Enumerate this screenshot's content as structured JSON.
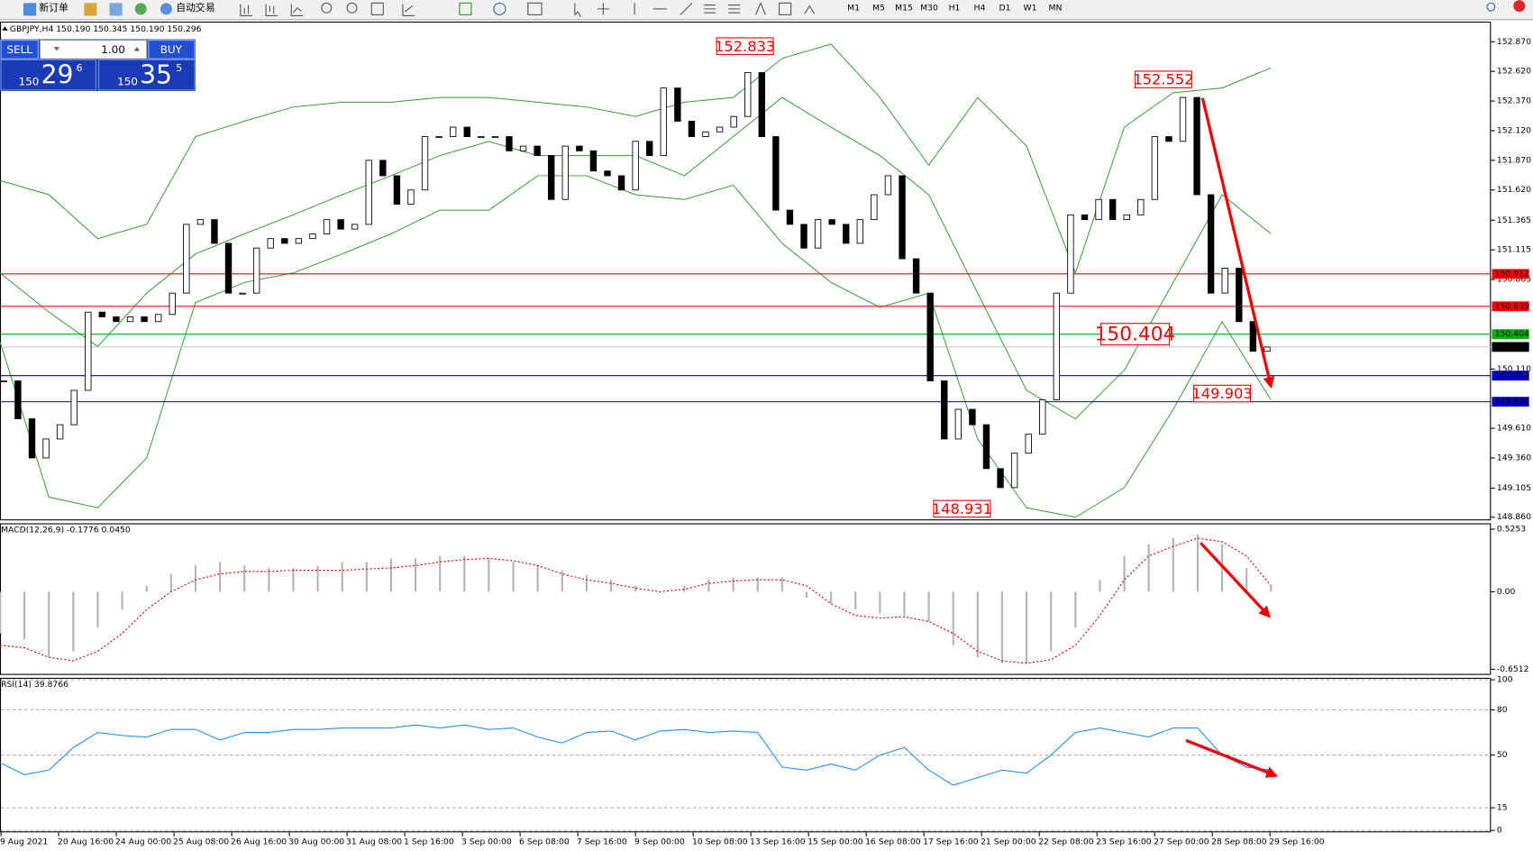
{
  "toolbar": {
    "new_order": "新订单",
    "auto_trading": "自动交易",
    "timeframes": [
      "M1",
      "M5",
      "M15",
      "M30",
      "H1",
      "H4",
      "D1",
      "W1",
      "MN"
    ]
  },
  "trade_panel": {
    "sell": "SELL",
    "lot": "1.00",
    "buy": "BUY",
    "bid": {
      "big": "150",
      "mid": "29",
      "small": "6"
    },
    "ask": {
      "big": "150",
      "mid": "35",
      "small": "5"
    }
  },
  "chart_data": [
    {
      "type": "candlestick",
      "title": "GBPJPY,H4 150.190 150.345 150.190 150.296",
      "closes": [
        150.01,
        149.69,
        149.36,
        149.52,
        149.64,
        149.93,
        150.59,
        150.55,
        150.51,
        150.55,
        150.51,
        150.57,
        150.75,
        151.33,
        151.37,
        151.17,
        150.75,
        150.75,
        151.13,
        151.21,
        151.17,
        151.21,
        151.25,
        151.37,
        151.29,
        151.33,
        151.87,
        151.74,
        151.5,
        151.62,
        152.07,
        152.07,
        152.15,
        152.07,
        152.07,
        152.07,
        151.95,
        151.99,
        151.91,
        151.54,
        151.99,
        151.95,
        151.78,
        151.74,
        151.62,
        152.03,
        151.91,
        152.48,
        152.2,
        152.07,
        152.11,
        152.15,
        152.24,
        152.61,
        152.07,
        151.45,
        151.33,
        151.13,
        151.37,
        151.33,
        151.17,
        151.37,
        151.58,
        151.74,
        151.04,
        150.75,
        150.01,
        149.52,
        149.77,
        149.64,
        149.27,
        149.11,
        149.4,
        149.56,
        149.85,
        150.75,
        151.41,
        151.37,
        151.54,
        151.37,
        151.41,
        151.54,
        152.07,
        152.03,
        152.4,
        151.58,
        150.75,
        150.96,
        150.51,
        150.26,
        150.296
      ],
      "bands": [
        {
          "color": "#2e9e2e",
          "values": [
            151.7,
            151.58,
            151.21,
            151.33,
            152.07,
            152.2,
            152.32,
            152.36,
            152.36,
            152.4,
            152.4,
            152.36,
            152.32,
            152.24,
            152.36,
            152.4,
            152.73,
            152.85,
            152.4,
            151.83,
            152.4,
            151.99,
            150.92,
            152.15,
            152.44,
            152.48,
            152.65
          ]
        },
        {
          "color": "#2e9e2e",
          "values": [
            150.92,
            150.59,
            150.3,
            150.75,
            151.08,
            151.25,
            151.41,
            151.58,
            151.74,
            151.91,
            152.03,
            151.91,
            151.91,
            151.91,
            151.74,
            152.07,
            152.4,
            152.15,
            151.91,
            151.58,
            150.75,
            149.93,
            149.69,
            150.1,
            150.84,
            151.58,
            151.25
          ]
        },
        {
          "color": "#2e9e2e",
          "values": [
            150.34,
            149.03,
            148.94,
            149.36,
            150.67,
            150.84,
            150.92,
            151.08,
            151.25,
            151.45,
            151.45,
            151.74,
            151.74,
            151.58,
            151.54,
            151.66,
            151.17,
            150.84,
            150.63,
            150.75,
            149.52,
            148.94,
            148.86,
            149.11,
            149.77,
            150.51,
            149.85
          ]
        }
      ],
      "levels": [
        {
          "value": 150.912,
          "color": "#ff0000"
        },
        {
          "value": 150.639,
          "color": "#ff0000"
        },
        {
          "value": 150.404,
          "color": "#00b000"
        },
        {
          "value": 150.296,
          "color": "#000000"
        },
        {
          "value": 150.054,
          "color": "#0000cc"
        },
        {
          "value": 149.834,
          "color": "#0000cc"
        }
      ],
      "annotations": [
        152.833,
        152.552,
        150.404,
        149.903,
        148.931
      ],
      "ylim": [
        148.85,
        153.04
      ],
      "yticks": [
        {
          "value": 152.87,
          "label": "152.870"
        },
        {
          "value": 152.62,
          "label": "152.620"
        },
        {
          "value": 152.37,
          "label": "152.370"
        },
        {
          "value": 152.12,
          "label": "152.120"
        },
        {
          "value": 151.87,
          "label": "151.870"
        },
        {
          "value": 151.62,
          "label": "151.620"
        },
        151.365,
        151.115,
        150.865,
        {
          "value": 150.11,
          "label": "150.110"
        },
        {
          "value": 149.61,
          "label": "149.610"
        },
        {
          "value": 149.36,
          "label": "149.360"
        },
        149.105,
        {
          "value": 148.86,
          "label": "148.860"
        }
      ]
    },
    {
      "type": "macd",
      "title": "MACD(12,26,9) -0.1776 0.0450",
      "histogram": {
        "color": "#b4b4b4",
        "values": [
          -0.35,
          -0.4,
          -0.55,
          -0.5,
          -0.3,
          -0.15,
          0.05,
          0.15,
          0.22,
          0.25,
          0.22,
          0.2,
          0.2,
          0.22,
          0.25,
          0.25,
          0.28,
          0.28,
          0.3,
          0.3,
          0.28,
          0.25,
          0.22,
          0.18,
          0.14,
          0.1,
          0.05,
          0.0,
          0.05,
          0.1,
          0.12,
          0.12,
          0.12,
          -0.05,
          -0.1,
          -0.15,
          -0.18,
          -0.2,
          -0.25,
          -0.45,
          -0.55,
          -0.6,
          -0.6,
          -0.5,
          -0.3,
          0.1,
          0.3,
          0.4,
          0.45,
          0.48,
          0.4,
          0.2,
          0.05
        ]
      },
      "signal": {
        "color": "#e00000",
        "values": [
          -0.45,
          -0.47,
          -0.55,
          -0.58,
          -0.5,
          -0.35,
          -0.15,
          0.0,
          0.1,
          0.15,
          0.17,
          0.17,
          0.18,
          0.18,
          0.18,
          0.19,
          0.2,
          0.22,
          0.25,
          0.27,
          0.28,
          0.26,
          0.22,
          0.15,
          0.1,
          0.07,
          0.03,
          0.0,
          0.02,
          0.07,
          0.09,
          0.1,
          0.1,
          0.05,
          -0.1,
          -0.2,
          -0.22,
          -0.21,
          -0.25,
          -0.35,
          -0.5,
          -0.58,
          -0.6,
          -0.57,
          -0.45,
          -0.2,
          0.1,
          0.3,
          0.38,
          0.45,
          0.42,
          0.3,
          0.05
        ]
      },
      "ylim": [
        -0.698,
        0.558
      ],
      "yticks": [
        0.5253,
        {
          "value": 0,
          "label": "0.00"
        },
        -0.6512
      ]
    },
    {
      "type": "line",
      "title": "RSI(14) 39.8766",
      "color": "#1e8fff",
      "values": [
        45,
        37,
        40,
        55,
        65,
        63,
        62,
        67,
        67,
        60,
        65,
        65,
        67,
        67,
        68,
        68,
        68,
        70,
        68,
        70,
        67,
        68,
        62,
        58,
        65,
        66,
        60,
        66,
        67,
        65,
        66,
        65,
        42,
        40,
        44,
        40,
        50,
        55,
        40,
        30,
        35,
        40,
        38,
        50,
        65,
        68,
        65,
        62,
        68,
        68,
        50,
        42,
        40
      ],
      "ylim": [
        0,
        100
      ],
      "yticks": [
        100,
        80,
        50,
        15,
        0
      ],
      "grid": true,
      "x_labels": [
        "9 Aug 2021",
        "20 Aug 16:00",
        "24 Aug 00:00",
        "25 Aug 08:00",
        "26 Aug 16:00",
        "30 Aug 00:00",
        "31 Aug 08:00",
        "1 Sep 16:00",
        "3 Sep 00:00",
        "6 Sep 08:00",
        "7 Sep 16:00",
        "9 Sep 00:00",
        "10 Sep 08:00",
        "13 Sep 16:00",
        "15 Sep 00:00",
        "16 Sep 08:00",
        "17 Sep 16:00",
        "21 Sep 00:00",
        "22 Sep 08:00",
        "23 Sep 16:00",
        "27 Sep 00:00",
        "28 Sep 08:00",
        "29 Sep 16:00"
      ]
    }
  ]
}
